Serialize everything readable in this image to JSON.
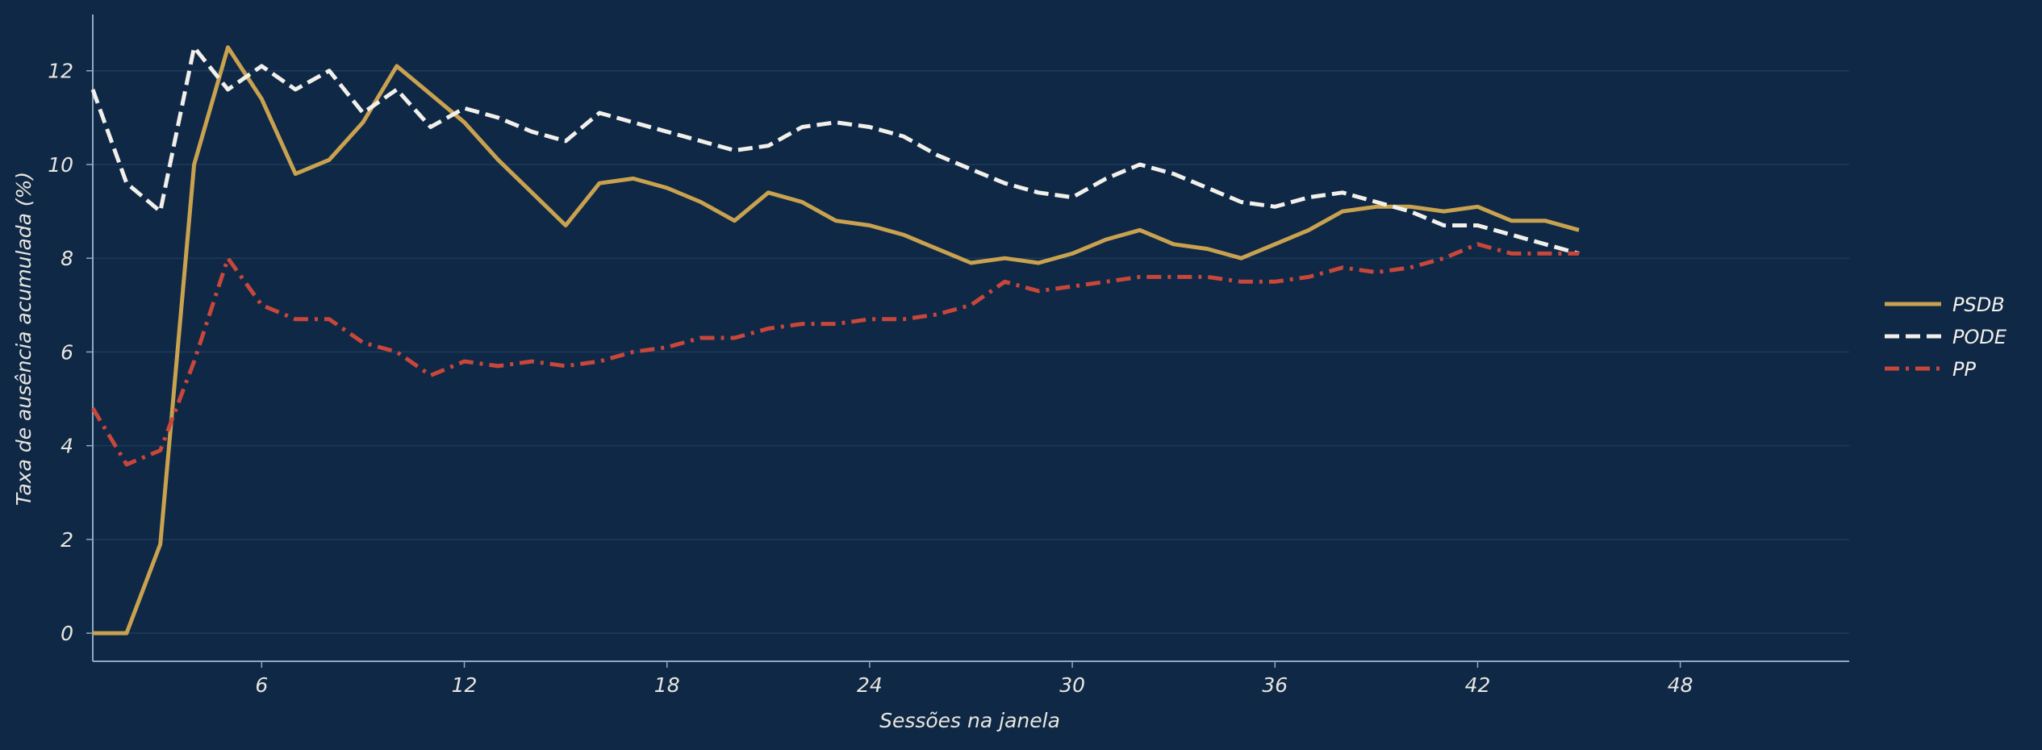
{
  "chart_data": {
    "type": "line",
    "xlabel": "Sessões na janela",
    "ylabel": "Taxa de ausência acumulada (%)",
    "xlim": [
      1,
      53
    ],
    "ylim": [
      -0.6,
      13.2
    ],
    "x_ticks": [
      6,
      12,
      18,
      24,
      30,
      36,
      42,
      48
    ],
    "y_ticks": [
      0,
      2,
      4,
      6,
      8,
      10,
      12
    ],
    "grid": "horizontal",
    "legend_position": "right",
    "x": [
      1,
      2,
      3,
      4,
      5,
      6,
      7,
      8,
      9,
      10,
      11,
      12,
      13,
      14,
      15,
      16,
      17,
      18,
      19,
      20,
      21,
      22,
      23,
      24,
      25,
      26,
      27,
      28,
      29,
      30,
      31,
      32,
      33,
      34,
      35,
      36,
      37,
      38,
      39,
      40,
      41,
      42,
      43,
      44,
      45
    ],
    "series": [
      {
        "name": "PSDB",
        "color": "#c9a24f",
        "dash": "solid",
        "values": [
          0,
          0,
          1.9,
          10.0,
          12.5,
          11.4,
          9.8,
          10.1,
          10.9,
          12.1,
          11.5,
          10.9,
          10.1,
          9.4,
          8.7,
          9.6,
          9.7,
          9.5,
          9.2,
          8.8,
          9.4,
          9.2,
          8.8,
          8.7,
          8.5,
          8.2,
          7.9,
          8.0,
          7.9,
          8.1,
          8.4,
          8.6,
          8.3,
          8.2,
          8.0,
          8.3,
          8.6,
          9.0,
          9.1,
          9.1,
          9.0,
          9.1,
          8.8,
          8.8,
          8.6
        ]
      },
      {
        "name": "PODE",
        "color": "#f2f0ea",
        "dash": "dashed",
        "values": [
          11.6,
          9.6,
          9.0,
          12.5,
          11.6,
          12.1,
          11.6,
          12.0,
          11.1,
          11.6,
          10.8,
          11.2,
          11.0,
          10.7,
          10.5,
          11.1,
          10.9,
          10.7,
          10.5,
          10.3,
          10.4,
          10.8,
          10.9,
          10.8,
          10.6,
          10.2,
          9.9,
          9.6,
          9.4,
          9.3,
          9.7,
          10.0,
          9.8,
          9.5,
          9.2,
          9.1,
          9.3,
          9.4,
          9.2,
          9.0,
          8.7,
          8.7,
          8.5,
          8.3,
          8.1
        ]
      },
      {
        "name": "PP",
        "color": "#c8473a",
        "dash": "dashdot",
        "values": [
          4.8,
          3.6,
          3.9,
          5.8,
          8.0,
          7.0,
          6.7,
          6.7,
          6.2,
          6.0,
          5.5,
          5.8,
          5.7,
          5.8,
          5.7,
          5.8,
          6.0,
          6.1,
          6.3,
          6.3,
          6.5,
          6.6,
          6.6,
          6.7,
          6.7,
          6.8,
          7.0,
          7.5,
          7.3,
          7.4,
          7.5,
          7.6,
          7.6,
          7.6,
          7.5,
          7.5,
          7.6,
          7.8,
          7.7,
          7.8,
          8.0,
          8.3,
          8.1,
          8.1,
          8.1
        ]
      }
    ]
  }
}
